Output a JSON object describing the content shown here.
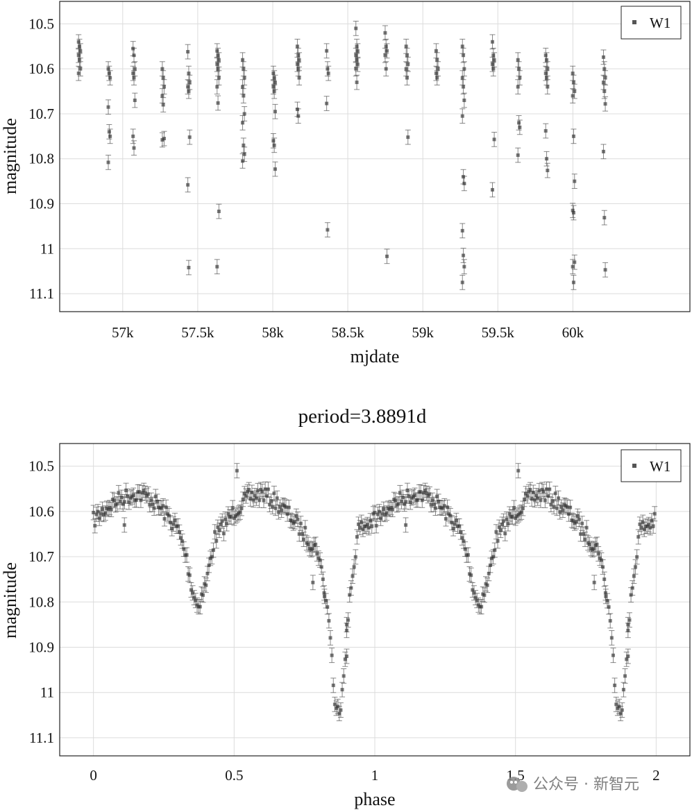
{
  "chart_data": [
    {
      "type": "scatter",
      "title": "",
      "xlabel": "mjdate",
      "ylabel": "magnitude",
      "xlim": [
        56580,
        60780
      ],
      "ylim": [
        10.45,
        11.14
      ],
      "y_inverted": true,
      "grid": true,
      "legend_position": "top-right",
      "x_ticks": [
        57000,
        57500,
        58000,
        58500,
        59000,
        59500,
        60000
      ],
      "x_tick_labels": [
        "57k",
        "57.5k",
        "58k",
        "58.5k",
        "59k",
        "59.5k",
        "60k"
      ],
      "y_ticks": [
        10.5,
        10.6,
        10.7,
        10.8,
        10.9,
        11.0,
        11.1
      ],
      "y_tick_labels": [
        "10.5",
        "10.6",
        "10.7",
        "10.8",
        "10.9",
        "11",
        "11.1"
      ],
      "series": [
        {
          "name": "W1",
          "color": "#000000",
          "error_bar": 0.016,
          "clusters": [
            {
              "x": 56712,
              "y": [
                10.54,
                10.55,
                10.56,
                10.57,
                10.58,
                10.6,
                10.61
              ]
            },
            {
              "x": 56910,
              "y": [
                10.6,
                10.61,
                10.62,
                10.685,
                10.74,
                10.75,
                10.808
              ]
            },
            {
              "x": 57075,
              "y": [
                10.555,
                10.57,
                10.6,
                10.61,
                10.62,
                10.67,
                10.75,
                10.776
              ]
            },
            {
              "x": 57270,
              "y": [
                10.6,
                10.62,
                10.64,
                10.66,
                10.68,
                10.755,
                10.758
              ]
            },
            {
              "x": 57440,
              "y": [
                10.562,
                10.61,
                10.63,
                10.64,
                10.65,
                10.752,
                10.858,
                11.042
              ]
            },
            {
              "x": 57635,
              "y": [
                10.56,
                10.57,
                10.58,
                10.59,
                10.6,
                10.62,
                10.64,
                10.676,
                10.917,
                11.04
              ]
            },
            {
              "x": 57805,
              "y": [
                10.58,
                10.6,
                10.62,
                10.64,
                10.66,
                10.7,
                10.72,
                10.77,
                10.79,
                10.805
              ]
            },
            {
              "x": 58010,
              "y": [
                10.61,
                10.62,
                10.63,
                10.64,
                10.65,
                10.695,
                10.76,
                10.77,
                10.823
              ]
            },
            {
              "x": 58170,
              "y": [
                10.55,
                10.57,
                10.58,
                10.59,
                10.6,
                10.62,
                10.69,
                10.705
              ]
            },
            {
              "x": 58365,
              "y": [
                10.56,
                10.6,
                10.61,
                10.677,
                10.958
              ]
            },
            {
              "x": 58560,
              "y": [
                10.51,
                10.55,
                10.56,
                10.57,
                10.58,
                10.59,
                10.6,
                10.63
              ]
            },
            {
              "x": 58755,
              "y": [
                10.52,
                10.55,
                10.56,
                10.57,
                10.6,
                11.017
              ]
            },
            {
              "x": 58895,
              "y": [
                10.55,
                10.57,
                10.59,
                10.6,
                10.62,
                10.752
              ]
            },
            {
              "x": 59095,
              "y": [
                10.56,
                10.58,
                10.6,
                10.61,
                10.62
              ]
            },
            {
              "x": 59270,
              "y": [
                10.55,
                10.57,
                10.6,
                10.62,
                10.64,
                10.67,
                10.705,
                10.84,
                10.855,
                10.96,
                11.015,
                11.04,
                11.075
              ]
            },
            {
              "x": 59470,
              "y": [
                10.54,
                10.57,
                10.58,
                10.59,
                10.6,
                10.757,
                10.869
              ]
            },
            {
              "x": 59640,
              "y": [
                10.58,
                10.6,
                10.62,
                10.64,
                10.72,
                10.73,
                10.792
              ]
            },
            {
              "x": 59825,
              "y": [
                10.57,
                10.58,
                10.6,
                10.61,
                10.62,
                10.64,
                10.738,
                10.8,
                10.826
              ]
            },
            {
              "x": 60005,
              "y": [
                10.61,
                10.63,
                10.65,
                10.66,
                10.75,
                10.85,
                10.915,
                10.92,
                11.03,
                11.04,
                11.075
              ]
            },
            {
              "x": 60210,
              "y": [
                10.574,
                10.6,
                10.62,
                10.63,
                10.65,
                10.678,
                10.784,
                10.931,
                11.047
              ]
            }
          ]
        }
      ]
    },
    {
      "type": "scatter",
      "title": "period=3.8891d",
      "xlabel": "phase",
      "ylabel": "magnitude",
      "xlim": [
        -0.12,
        2.12
      ],
      "ylim": [
        10.45,
        11.14
      ],
      "y_inverted": true,
      "grid": true,
      "legend_position": "top-right",
      "x_ticks": [
        0,
        0.5,
        1,
        1.5,
        2
      ],
      "x_tick_labels": [
        "0",
        "0.5",
        "1",
        "1.5",
        "2"
      ],
      "y_ticks": [
        10.5,
        10.6,
        10.7,
        10.8,
        10.9,
        11.0,
        11.1
      ],
      "y_tick_labels": [
        "10.5",
        "10.6",
        "10.7",
        "10.8",
        "10.9",
        "11",
        "11.1"
      ],
      "series": [
        {
          "name": "W1",
          "color": "#000000",
          "error_bar": 0.016,
          "repeat_period": 1.0,
          "light_curve": {
            "phase": [
              0.0,
              0.05,
              0.1,
              0.15,
              0.2,
              0.25,
              0.3,
              0.33,
              0.35,
              0.37,
              0.4,
              0.43,
              0.5,
              0.55,
              0.6,
              0.65,
              0.7,
              0.75,
              0.8,
              0.84,
              0.86,
              0.88,
              0.91,
              0.94,
              1.0
            ],
            "magnitude": [
              10.62,
              10.59,
              10.57,
              10.56,
              10.57,
              10.6,
              10.64,
              10.7,
              10.77,
              10.81,
              10.76,
              10.66,
              10.6,
              10.57,
              10.56,
              10.58,
              10.61,
              10.65,
              10.69,
              10.85,
              11.05,
              11.02,
              10.8,
              10.64,
              10.62
            ]
          },
          "outliers": [
            {
              "x": 0.51,
              "y": 10.51
            },
            {
              "x": 0.78,
              "y": 10.757
            },
            {
              "x": 0.82,
              "y": 10.78
            },
            {
              "x": 0.9,
              "y": 10.85
            },
            {
              "x": 0.9,
              "y": 10.92
            },
            {
              "x": 0.11,
              "y": 10.63
            }
          ]
        }
      ]
    }
  ],
  "watermark": {
    "text": "公众号 · 新智元"
  }
}
